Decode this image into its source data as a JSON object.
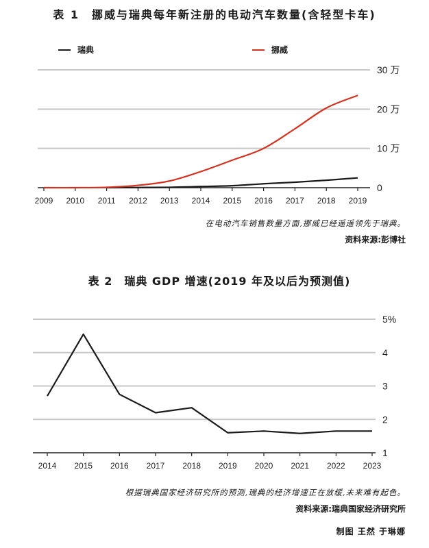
{
  "chart_data": [
    {
      "type": "line",
      "title": "表 1　挪威与瑞典每年新注册的电动汽车数量(含轻型卡车)",
      "x": [
        2009,
        2010,
        2011,
        2012,
        2013,
        2014,
        2015,
        2016,
        2017,
        2018,
        2019
      ],
      "x_tick_labels": [
        "2009",
        "2010",
        "2011",
        "2012",
        "2013",
        "2014",
        "2015",
        "2016",
        "2017",
        "2018",
        "2019"
      ],
      "y_tick_labels": [
        "0",
        "10 万",
        "20 万",
        "30 万"
      ],
      "y_ticks": [
        0,
        100000,
        200000,
        300000
      ],
      "ylim": [
        0,
        300000
      ],
      "grid": true,
      "y_axis_position": "right",
      "legend_placement": "top",
      "series": [
        {
          "name": "瑞典",
          "color": "#1a1a1a",
          "x": [
            2011,
            2012,
            2013,
            2014,
            2015,
            2016,
            2017,
            2018,
            2019
          ],
          "values": [
            0,
            500,
            1000,
            3000,
            5000,
            10000,
            14000,
            19000,
            25000
          ]
        },
        {
          "name": "挪威",
          "color": "#d6311e",
          "values": [
            0,
            0,
            1000,
            6000,
            17000,
            41000,
            70000,
            100000,
            150000,
            203000,
            235000
          ]
        }
      ],
      "caption": "在电动汽车销售数量方面,挪威已经遥遥领先于瑞典。",
      "source": "资料来源:彭博社"
    },
    {
      "type": "line",
      "title": "表 2　瑞典 GDP 增速(2019 年及以后为预测值)",
      "x": [
        2014,
        2015,
        2016,
        2017,
        2018,
        2019,
        2020,
        2021,
        2022,
        2023
      ],
      "x_tick_labels": [
        "2014",
        "2015",
        "2016",
        "2017",
        "2018",
        "2019",
        "2020",
        "2021",
        "2022",
        "2023"
      ],
      "y_tick_labels": [
        "1",
        "2",
        "3",
        "4",
        "5%"
      ],
      "y_ticks": [
        1,
        2,
        3,
        4,
        5
      ],
      "ylim": [
        1,
        5
      ],
      "grid": true,
      "y_axis_position": "right",
      "series": [
        {
          "color": "#1a1a1a",
          "values": [
            2.7,
            4.55,
            2.75,
            2.2,
            2.35,
            1.6,
            1.65,
            1.58,
            1.65,
            1.65
          ]
        }
      ],
      "caption": "根据瑞典国家经济研究所的预测,瑞典的经济增速正在放缓,未来难有起色。",
      "source": "资料来源:瑞典国家经济研究所"
    }
  ],
  "credit": "制图 王然 于琳娜"
}
